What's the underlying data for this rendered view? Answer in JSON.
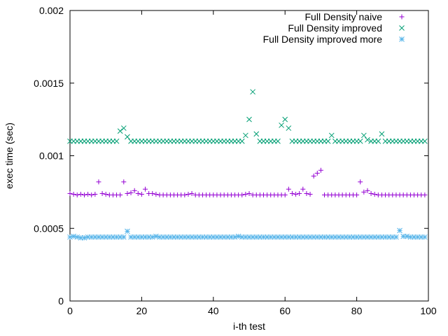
{
  "chart_data": {
    "type": "scatter",
    "title": "",
    "xlabel": "i-th test",
    "ylabel": "exec time (sec)",
    "xlim": [
      0,
      100
    ],
    "ylim": [
      0,
      0.002
    ],
    "xticks": [
      0,
      20,
      40,
      60,
      80,
      100
    ],
    "yticks": [
      0,
      0.0005,
      0.001,
      0.0015,
      0.002
    ],
    "xtick_labels": [
      "0",
      "20",
      "40",
      "60",
      "80",
      "100"
    ],
    "ytick_labels": [
      "0",
      "0.0005",
      "0.001",
      "0.0015",
      "0.002"
    ],
    "grid": false,
    "legend_position": "top-right",
    "series": [
      {
        "name": "Full Density naive",
        "marker": "plus",
        "color": "#9400d3",
        "x": [
          0,
          1,
          2,
          3,
          4,
          5,
          6,
          7,
          8,
          9,
          10,
          11,
          12,
          13,
          14,
          15,
          16,
          17,
          18,
          19,
          20,
          21,
          22,
          23,
          24,
          25,
          26,
          27,
          28,
          29,
          30,
          31,
          32,
          33,
          34,
          35,
          36,
          37,
          38,
          39,
          40,
          41,
          42,
          43,
          44,
          45,
          46,
          47,
          48,
          49,
          50,
          51,
          52,
          53,
          54,
          55,
          56,
          57,
          58,
          59,
          60,
          61,
          62,
          63,
          64,
          65,
          66,
          67,
          68,
          69,
          70,
          71,
          72,
          73,
          74,
          75,
          76,
          77,
          78,
          79,
          80,
          81,
          82,
          83,
          84,
          85,
          86,
          87,
          88,
          89,
          90,
          91,
          92,
          93,
          94,
          95,
          96,
          97,
          98,
          99
        ],
        "y": [
          0.00074,
          0.000735,
          0.00073,
          0.000735,
          0.00073,
          0.000735,
          0.00073,
          0.000735,
          0.00082,
          0.00074,
          0.000735,
          0.00073,
          0.00073,
          0.00073,
          0.00073,
          0.00082,
          0.00074,
          0.000745,
          0.00076,
          0.00074,
          0.000735,
          0.00077,
          0.00074,
          0.00074,
          0.000735,
          0.00073,
          0.00073,
          0.00073,
          0.00073,
          0.00073,
          0.00073,
          0.00073,
          0.00073,
          0.000735,
          0.00074,
          0.00073,
          0.00073,
          0.00073,
          0.00073,
          0.00073,
          0.00073,
          0.00073,
          0.00073,
          0.00073,
          0.00073,
          0.00073,
          0.00073,
          0.00073,
          0.00073,
          0.000735,
          0.00074,
          0.00073,
          0.00073,
          0.00073,
          0.00073,
          0.00073,
          0.00073,
          0.00073,
          0.00073,
          0.00073,
          0.00073,
          0.00077,
          0.00074,
          0.000735,
          0.00074,
          0.00077,
          0.00074,
          0.000735,
          0.00086,
          0.00088,
          0.0009,
          0.00073,
          0.00073,
          0.00073,
          0.00073,
          0.00073,
          0.00073,
          0.00073,
          0.00073,
          0.00073,
          0.00073,
          0.00082,
          0.00075,
          0.00076,
          0.00074,
          0.000735,
          0.00073,
          0.00073,
          0.00073,
          0.00073,
          0.00073,
          0.00073,
          0.00073,
          0.00073,
          0.00073,
          0.00073,
          0.00073,
          0.00073,
          0.00073,
          0.00073
        ]
      },
      {
        "name": "Full Density improved",
        "marker": "cross",
        "color": "#009e73",
        "x": [
          0,
          1,
          2,
          3,
          4,
          5,
          6,
          7,
          8,
          9,
          10,
          11,
          12,
          13,
          14,
          15,
          16,
          17,
          18,
          19,
          20,
          21,
          22,
          23,
          24,
          25,
          26,
          27,
          28,
          29,
          30,
          31,
          32,
          33,
          34,
          35,
          36,
          37,
          38,
          39,
          40,
          41,
          42,
          43,
          44,
          45,
          46,
          47,
          48,
          49,
          50,
          51,
          52,
          53,
          54,
          55,
          56,
          57,
          58,
          59,
          60,
          61,
          62,
          63,
          64,
          65,
          66,
          67,
          68,
          69,
          70,
          71,
          72,
          73,
          74,
          75,
          76,
          77,
          78,
          79,
          80,
          81,
          82,
          83,
          84,
          85,
          86,
          87,
          88,
          89,
          90,
          91,
          92,
          93,
          94,
          95,
          96,
          97,
          98,
          99
        ],
        "y": [
          0.0011,
          0.0011,
          0.0011,
          0.0011,
          0.0011,
          0.0011,
          0.0011,
          0.0011,
          0.0011,
          0.0011,
          0.0011,
          0.0011,
          0.0011,
          0.0011,
          0.00117,
          0.00119,
          0.00113,
          0.0011,
          0.0011,
          0.0011,
          0.0011,
          0.0011,
          0.0011,
          0.0011,
          0.0011,
          0.0011,
          0.0011,
          0.0011,
          0.0011,
          0.0011,
          0.0011,
          0.0011,
          0.0011,
          0.0011,
          0.0011,
          0.0011,
          0.0011,
          0.0011,
          0.0011,
          0.0011,
          0.0011,
          0.0011,
          0.0011,
          0.0011,
          0.0011,
          0.0011,
          0.0011,
          0.0011,
          0.0011,
          0.00114,
          0.00125,
          0.00144,
          0.00115,
          0.0011,
          0.0011,
          0.0011,
          0.0011,
          0.0011,
          0.0011,
          0.00121,
          0.00125,
          0.00119,
          0.0011,
          0.0011,
          0.0011,
          0.0011,
          0.0011,
          0.0011,
          0.0011,
          0.0011,
          0.0011,
          0.0011,
          0.0011,
          0.00114,
          0.0011,
          0.0011,
          0.0011,
          0.0011,
          0.0011,
          0.0011,
          0.0011,
          0.0011,
          0.00114,
          0.00111,
          0.0011,
          0.0011,
          0.0011,
          0.00115,
          0.0011,
          0.0011,
          0.0011,
          0.0011,
          0.0011,
          0.0011,
          0.0011,
          0.0011,
          0.0011,
          0.0011,
          0.0011,
          0.0011
        ]
      },
      {
        "name": "Full Density improved more",
        "marker": "star",
        "color": "#56b4e9",
        "x": [
          0,
          1,
          2,
          3,
          4,
          5,
          6,
          7,
          8,
          9,
          10,
          11,
          12,
          13,
          14,
          15,
          16,
          17,
          18,
          19,
          20,
          21,
          22,
          23,
          24,
          25,
          26,
          27,
          28,
          29,
          30,
          31,
          32,
          33,
          34,
          35,
          36,
          37,
          38,
          39,
          40,
          41,
          42,
          43,
          44,
          45,
          46,
          47,
          48,
          49,
          50,
          51,
          52,
          53,
          54,
          55,
          56,
          57,
          58,
          59,
          60,
          61,
          62,
          63,
          64,
          65,
          66,
          67,
          68,
          69,
          70,
          71,
          72,
          73,
          74,
          75,
          76,
          77,
          78,
          79,
          80,
          81,
          82,
          83,
          84,
          85,
          86,
          87,
          88,
          89,
          90,
          91,
          92,
          93,
          94,
          95,
          96,
          97,
          98,
          99
        ],
        "y": [
          0.00044,
          0.000445,
          0.00044,
          0.000435,
          0.000435,
          0.00044,
          0.00044,
          0.00044,
          0.00044,
          0.00044,
          0.00044,
          0.00044,
          0.00044,
          0.00044,
          0.00044,
          0.00044,
          0.00048,
          0.00044,
          0.00044,
          0.00044,
          0.00044,
          0.00044,
          0.00044,
          0.00044,
          0.000445,
          0.00044,
          0.00044,
          0.00044,
          0.00044,
          0.00044,
          0.00044,
          0.00044,
          0.00044,
          0.00044,
          0.00044,
          0.00044,
          0.00044,
          0.00044,
          0.00044,
          0.00044,
          0.00044,
          0.00044,
          0.00044,
          0.00044,
          0.00044,
          0.00044,
          0.00044,
          0.000445,
          0.00044,
          0.00044,
          0.00044,
          0.00044,
          0.00044,
          0.00044,
          0.00044,
          0.00044,
          0.00044,
          0.00044,
          0.00044,
          0.00044,
          0.00044,
          0.00044,
          0.00044,
          0.00044,
          0.00044,
          0.00044,
          0.00044,
          0.00044,
          0.00044,
          0.00044,
          0.00044,
          0.00044,
          0.00044,
          0.00044,
          0.00044,
          0.00044,
          0.00044,
          0.00044,
          0.00044,
          0.00044,
          0.00044,
          0.00044,
          0.00044,
          0.00044,
          0.00044,
          0.00044,
          0.00044,
          0.00044,
          0.00044,
          0.00044,
          0.00044,
          0.00044,
          0.000485,
          0.000445,
          0.000445,
          0.00044,
          0.00044,
          0.00044,
          0.00044,
          0.00044
        ]
      }
    ]
  }
}
